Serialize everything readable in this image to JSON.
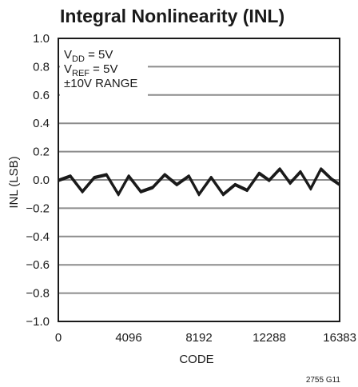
{
  "chart_data": {
    "type": "line",
    "title": "Integral Nonlinearity (INL)",
    "xlabel": "CODE",
    "ylabel": "INL (LSB)",
    "xlim": [
      0,
      16383
    ],
    "ylim": [
      -1.0,
      1.0
    ],
    "x_ticks": [
      0,
      4096,
      8192,
      12288,
      16383
    ],
    "x_tick_labels": [
      "0",
      "4096",
      "8192",
      "12288",
      "16383"
    ],
    "y_ticks": [
      1.0,
      0.8,
      0.6,
      0.4,
      0.2,
      0.0,
      -0.2,
      -0.4,
      -0.6,
      -0.8,
      -1.0
    ],
    "y_tick_labels": [
      "1.0",
      "0.8",
      "0.6",
      "0.4",
      "0.2",
      "0.0",
      "−0.2",
      "−0.4",
      "−0.6",
      "−0.8",
      "−1.0"
    ],
    "grid": true,
    "conditions": [
      {
        "name": "V",
        "sub": "DD",
        "value": " = 5V"
      },
      {
        "name": "V",
        "sub": "REF",
        "value": " = 5V"
      },
      {
        "name": "±10V RANGE",
        "sub": "",
        "value": ""
      }
    ],
    "series": [
      {
        "line_color": "#1a1a1a",
        "band": 0.01,
        "x": [
          0,
          700,
          1400,
          2100,
          2800,
          3500,
          4100,
          4800,
          5500,
          6200,
          6900,
          7600,
          8190,
          8900,
          9600,
          10300,
          11000,
          11700,
          12280,
          12900,
          13500,
          14100,
          14700,
          15300,
          15900,
          16383
        ],
        "y": [
          0.0,
          0.03,
          -0.08,
          0.02,
          0.04,
          -0.1,
          0.03,
          -0.08,
          -0.05,
          0.04,
          -0.03,
          0.03,
          -0.1,
          0.02,
          -0.1,
          -0.03,
          -0.07,
          0.05,
          0.0,
          0.08,
          -0.02,
          0.06,
          -0.06,
          0.08,
          0.01,
          -0.03
        ]
      }
    ],
    "figure_id": "2755 G11"
  }
}
